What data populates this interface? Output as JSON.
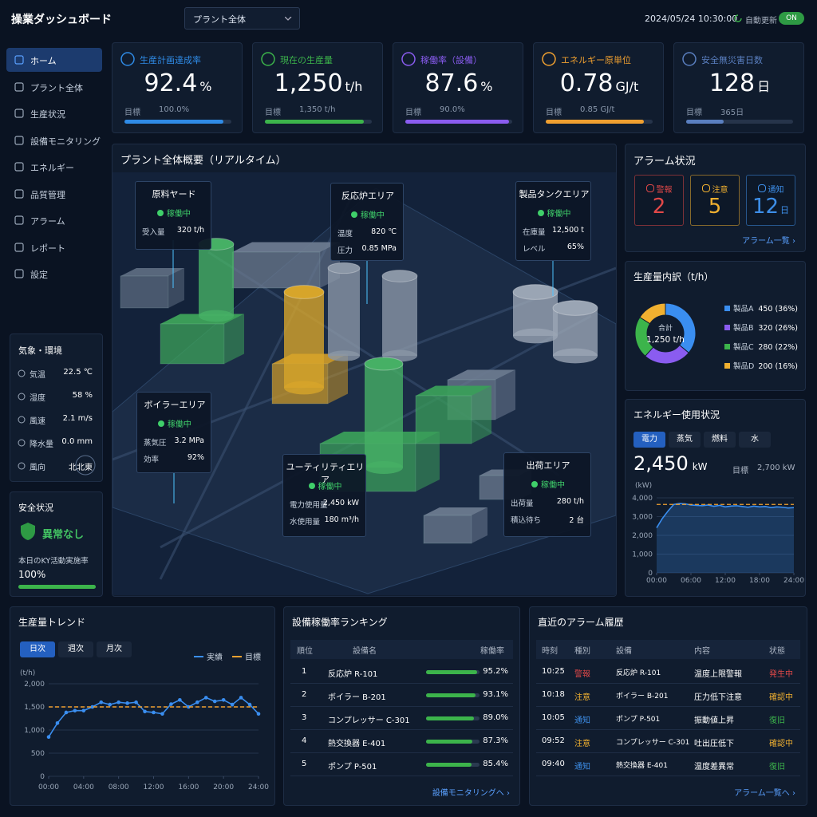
{
  "header": {
    "title": "操業ダッシュボード",
    "plant_select": "プラント全体",
    "datetime": "2024/05/24 10:30:00",
    "auto_update": "自動更新",
    "toggle": "ON"
  },
  "nav": [
    "ホーム",
    "プラント全体",
    "生産状況",
    "設備モニタリング",
    "エネルギー",
    "品質管理",
    "アラーム",
    "レポート",
    "設定"
  ],
  "kpis": [
    {
      "label": "生産計画達成率",
      "value": 92.4,
      "unit": "%",
      "target_label": "目標",
      "target": {
        "value": 100,
        "label": "100.0%"
      },
      "color": "#2f8be6"
    },
    {
      "label": "現在の生産量",
      "value": {
        "value": 1250,
        "label": "1,250"
      },
      "unit": "t/h",
      "target_label": "目標",
      "target": {
        "value": 1350,
        "label": "1,350 t/h"
      },
      "color": "#3cb44b"
    },
    {
      "label": "稼働率（設備）",
      "value": 87.6,
      "unit": "%",
      "target_label": "目標",
      "target": {
        "value": 90,
        "label": "90.0%"
      },
      "color": "#8a5cf0"
    },
    {
      "label": "エネルギー原単位",
      "value": 0.78,
      "unit": "GJ/t",
      "target_label": "目標",
      "target": {
        "value": 0.85,
        "label": "0.85 GJ/t"
      },
      "color": "#f0a030"
    },
    {
      "label": "安全無災害日数",
      "value": 128,
      "unit": "日",
      "target_label": "目標",
      "target": {
        "value": 365,
        "label": "365日"
      },
      "color": "#5a7fc0"
    }
  ],
  "plant": {
    "title": "プラント全体概要（リアルタイム）",
    "areas": [
      {
        "name": "原料ヤード",
        "status": "稼働中",
        "metrics": [
          [
            "受入量",
            "320 t/h"
          ]
        ]
      },
      {
        "name": "反応炉エリア",
        "status": "稼働中",
        "metrics": [
          [
            "温度",
            "820 ℃"
          ],
          [
            "圧力",
            "0.85 MPa"
          ]
        ]
      },
      {
        "name": "製品タンクエリア",
        "status": "稼働中",
        "metrics": [
          [
            "在庫量",
            "12,500 t"
          ],
          [
            "レベル",
            "65%"
          ]
        ]
      },
      {
        "name": "ボイラーエリア",
        "status": "稼働中",
        "metrics": [
          [
            "蒸気圧",
            "3.2 MPa"
          ],
          [
            "効率",
            "92%"
          ]
        ]
      },
      {
        "name": "ユーティリティエリア",
        "status": "稼働中",
        "metrics": [
          [
            "電力使用量",
            "2,450 kW"
          ],
          [
            "水使用量",
            "180 m³/h"
          ]
        ]
      },
      {
        "name": "出荷エリア",
        "status": "稼働中",
        "metrics": [
          [
            "出荷量",
            "280 t/h"
          ],
          [
            "積込待ち",
            "2 台"
          ]
        ]
      }
    ]
  },
  "weather": {
    "title": "気象・環境",
    "items": [
      [
        "気温",
        "22.5 ℃"
      ],
      [
        "湿度",
        "58 %"
      ],
      [
        "風速",
        "2.1 m/s"
      ],
      [
        "降水量",
        "0.0 mm"
      ],
      [
        "風向",
        "北北東"
      ]
    ]
  },
  "safety": {
    "title": "安全状況",
    "status": "異常なし",
    "ky_label": "本日のKY活動実施率",
    "ky_rate": {
      "value": 100,
      "label": "100%"
    }
  },
  "alarm_status": {
    "title": "アラーム状況",
    "items": [
      {
        "label": "警報",
        "count": 2,
        "color": "#e04848"
      },
      {
        "label": "注意",
        "count": 5,
        "color": "#f0b030"
      },
      {
        "label": "通知",
        "count": 12,
        "unit": "日",
        "color": "#3d8ee8"
      }
    ],
    "link": "アラーム一覧 ›"
  },
  "chart_data": [
    {
      "type": "pie",
      "title": "生産量内訳（t/h）",
      "center_label": "合計",
      "center_value": "1,250 t/h",
      "categories": [
        "製品A",
        "製品B",
        "製品C",
        "製品D"
      ],
      "values": [
        450,
        320,
        280,
        200
      ],
      "value_labels": [
        "450 (36%)",
        "320 (26%)",
        "280 (22%)",
        "200 (16%)"
      ],
      "colors": [
        "#3a8ef0",
        "#8a5cf0",
        "#3cb44b",
        "#f0b030"
      ]
    },
    {
      "type": "line",
      "title": "エネルギー使用状況",
      "tabs": [
        "電力",
        "蒸気",
        "燃料",
        "水"
      ],
      "active_tab": 0,
      "current": {
        "value": 2450,
        "label": "2,450"
      },
      "unit": "kW",
      "target_label": "目標",
      "target": "2,700 kW",
      "y_label": "(kW)",
      "x": [
        0,
        1,
        2,
        3,
        4,
        5,
        6,
        7,
        8,
        9,
        10,
        11,
        12,
        13,
        14,
        15,
        16,
        17,
        18,
        19,
        20,
        21,
        22,
        23,
        24
      ],
      "series": [
        {
          "color": "#3a8ef0",
          "values": [
            2400,
            2900,
            3300,
            3650,
            3700,
            3680,
            3620,
            3600,
            3580,
            3620,
            3550,
            3600,
            3520,
            3560,
            3580,
            3540,
            3500,
            3560,
            3520,
            3540,
            3480,
            3520,
            3500,
            3460,
            3480
          ]
        }
      ],
      "hlines": [
        {
          "value": 3650,
          "color": "#f0a030"
        }
      ],
      "xlim": [
        0,
        24
      ],
      "xticks": [
        {
          "value": 0,
          "label": "00:00"
        },
        {
          "value": 6,
          "label": "06:00"
        },
        {
          "value": 12,
          "label": "12:00"
        },
        {
          "value": 18,
          "label": "18:00"
        },
        {
          "value": 24,
          "label": "24:00"
        }
      ],
      "ylim": [
        0,
        4000
      ],
      "yticks": [
        0,
        {
          "value": 1000,
          "label": "1,000"
        },
        {
          "value": 2000,
          "label": "2,000"
        },
        {
          "value": 3000,
          "label": "3,000"
        },
        {
          "value": 4000,
          "label": "4,000"
        }
      ],
      "grid": true
    },
    {
      "type": "line",
      "title": "生産量トレンド",
      "tabs": [
        "日次",
        "週次",
        "月次"
      ],
      "active_tab": 0,
      "y_label": "(t/h)",
      "x": [
        0,
        1,
        2,
        3,
        4,
        5,
        6,
        7,
        8,
        9,
        10,
        11,
        12,
        13,
        14,
        15,
        16,
        17,
        18,
        19,
        20,
        21,
        22,
        23,
        24
      ],
      "series": [
        {
          "name": "実績",
          "color": "#3a8ef0",
          "values": [
            850,
            1150,
            1380,
            1420,
            1420,
            1500,
            1600,
            1550,
            1600,
            1580,
            1600,
            1400,
            1380,
            1350,
            1560,
            1650,
            1500,
            1600,
            1700,
            1620,
            1650,
            1550,
            1700,
            1550,
            1350
          ]
        },
        {
          "name": "目標",
          "color": "#f0a030",
          "dashed": true,
          "values": [
            1500,
            1500,
            1500,
            1500,
            1500,
            1500,
            1500,
            1500,
            1500,
            1500,
            1500,
            1500,
            1500,
            1500,
            1500,
            1500,
            1500,
            1500,
            1500,
            1500,
            1500,
            1500,
            1500,
            1500,
            1500
          ]
        }
      ],
      "xlim": [
        0,
        24
      ],
      "xticks": [
        {
          "value": 0,
          "label": "00:00"
        },
        {
          "value": 4,
          "label": "04:00"
        },
        {
          "value": 8,
          "label": "08:00"
        },
        {
          "value": 12,
          "label": "12:00"
        },
        {
          "value": 16,
          "label": "16:00"
        },
        {
          "value": 20,
          "label": "20:00"
        },
        {
          "value": 24,
          "label": "24:00"
        }
      ],
      "ylim": [
        0,
        2000
      ],
      "yticks": [
        0,
        500,
        {
          "value": 1000,
          "label": "1,000"
        },
        {
          "value": 1500,
          "label": "1,500"
        },
        {
          "value": 2000,
          "label": "2,000"
        }
      ],
      "grid": true
    },
    {
      "type": "bar",
      "title": "設備稼働率ランキング",
      "headers": [
        "順位",
        "設備名",
        "稼働率"
      ],
      "ranks": [
        1,
        2,
        3,
        4,
        5
      ],
      "categories": [
        "反応炉 R-101",
        "ボイラー B-201",
        "コンプレッサー C-301",
        "熱交換器 E-401",
        "ポンプ P-501"
      ],
      "values": [
        95.2,
        93.1,
        89.0,
        87.3,
        85.4
      ],
      "value_labels": [
        "95.2%",
        "93.1%",
        "89.0%",
        "87.3%",
        "85.4%"
      ],
      "color": "#3cb44b",
      "xlim": [
        0,
        100
      ],
      "link": "設備モニタリングへ ›"
    }
  ],
  "alarm_history": {
    "title": "直近のアラーム履歴",
    "headers": [
      "時刻",
      "種別",
      "設備",
      "内容",
      "状態"
    ],
    "rows": [
      [
        "10:25",
        "警報",
        "反応炉 R-101",
        "温度上限警報",
        "発生中"
      ],
      [
        "10:18",
        "注意",
        "ボイラー B-201",
        "圧力低下注意",
        "確認中"
      ],
      [
        "10:05",
        "通知",
        "ポンプ P-501",
        "振動値上昇",
        "復旧"
      ],
      [
        "09:52",
        "注意",
        "コンプレッサー C-301",
        "吐出圧低下",
        "確認中"
      ],
      [
        "09:40",
        "通知",
        "熱交換器 E-401",
        "温度差異常",
        "復旧"
      ]
    ],
    "type_colors": [
      "#e04848",
      "#f0b030",
      "#3d8ee8",
      "#f0b030",
      "#3d8ee8"
    ],
    "status_colors": [
      "#e04848",
      "#f0b030",
      "#3cb44b",
      "#f0b030",
      "#3cb44b"
    ],
    "link": "アラーム一覧へ ›"
  }
}
